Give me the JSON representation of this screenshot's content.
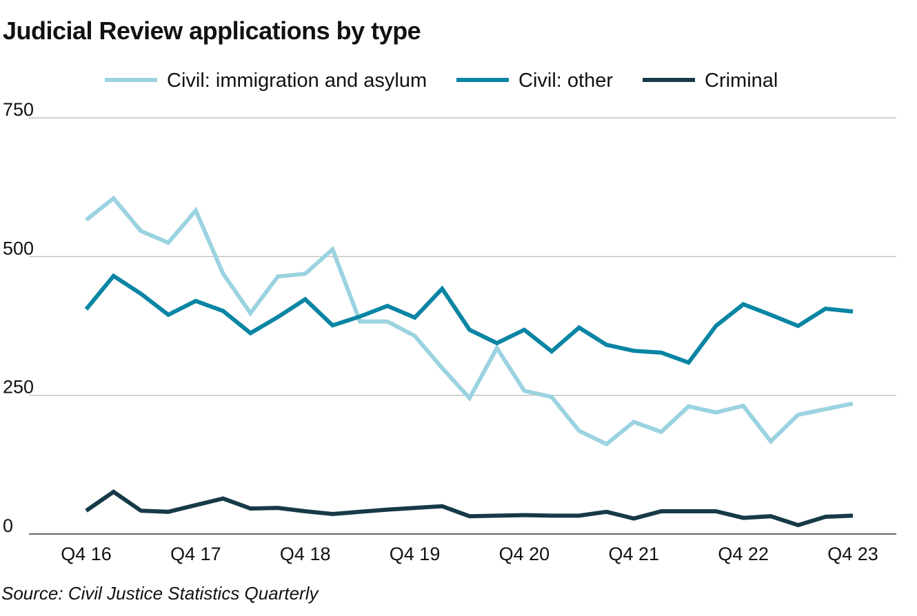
{
  "title": "Judicial Review applications by type",
  "source": "Source: Civil Justice Statistics Quarterly",
  "chart_data": {
    "type": "line",
    "title": "Judicial Review applications by type",
    "xlabel": "",
    "ylabel": "",
    "ylim": [
      0,
      750
    ],
    "yticks": [
      0,
      250,
      500,
      750
    ],
    "grid": true,
    "legend_position": "top",
    "x": [
      "Q4 16",
      "Q1 17",
      "Q2 17",
      "Q3 17",
      "Q4 17",
      "Q1 18",
      "Q2 18",
      "Q3 18",
      "Q4 18",
      "Q1 19",
      "Q2 19",
      "Q3 19",
      "Q4 19",
      "Q1 20",
      "Q2 20",
      "Q3 20",
      "Q4 20",
      "Q1 21",
      "Q2 21",
      "Q3 21",
      "Q4 21",
      "Q1 22",
      "Q2 22",
      "Q3 22",
      "Q4 22",
      "Q1 23",
      "Q2 23",
      "Q3 23",
      "Q4 23"
    ],
    "x_tick_labels": [
      "Q4 16",
      "Q4 17",
      "Q4 18",
      "Q4 19",
      "Q4 20",
      "Q4 21",
      "Q4 22",
      "Q4 23"
    ],
    "series": [
      {
        "name": "Civil: immigration and asylum",
        "color": "#9bd3e0",
        "values": [
          566,
          605,
          546,
          525,
          583,
          469,
          398,
          464,
          469,
          513,
          383,
          383,
          357,
          299,
          245,
          335,
          258,
          247,
          186,
          162,
          202,
          184,
          230,
          219,
          231,
          167,
          215,
          225,
          235
        ]
      },
      {
        "name": "Civil: other",
        "color": "#0a85a4",
        "values": [
          405,
          465,
          433,
          395,
          420,
          402,
          362,
          391,
          423,
          376,
          392,
          411,
          390,
          442,
          368,
          344,
          368,
          329,
          372,
          341,
          330,
          327,
          309,
          375,
          414,
          395,
          375,
          406,
          401
        ]
      },
      {
        "name": "Criminal",
        "color": "#163a47",
        "values": [
          42,
          76,
          42,
          40,
          52,
          64,
          46,
          47,
          41,
          36,
          40,
          44,
          47,
          50,
          32,
          33,
          34,
          33,
          33,
          40,
          28,
          41,
          41,
          41,
          29,
          32,
          16,
          31,
          33
        ]
      }
    ]
  }
}
